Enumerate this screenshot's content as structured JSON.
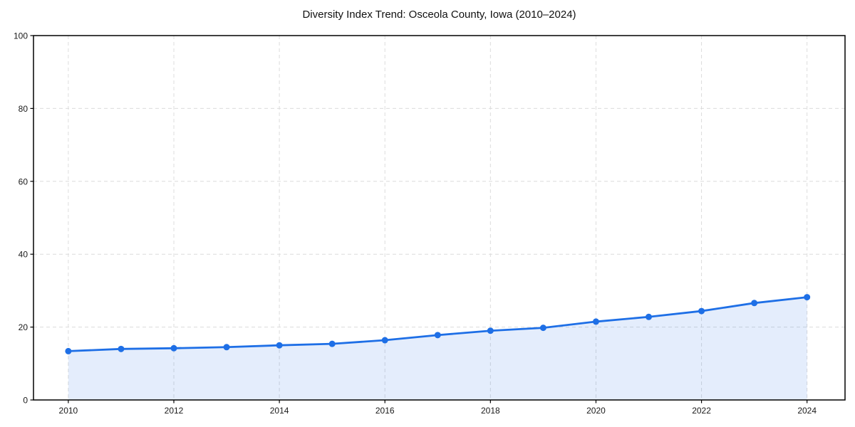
{
  "chart_data": {
    "type": "area",
    "title": "Diversity Index Trend: Osceola County, Iowa (2010–2024)",
    "series_name": "Diversity Index",
    "x": [
      2010,
      2011,
      2012,
      2013,
      2014,
      2015,
      2016,
      2017,
      2018,
      2019,
      2020,
      2021,
      2022,
      2023,
      2024
    ],
    "values": [
      13.4,
      14.0,
      14.2,
      14.5,
      15.0,
      15.4,
      16.4,
      17.8,
      19.0,
      19.8,
      21.5,
      22.8,
      24.4,
      26.6,
      28.2
    ],
    "xlabel": "",
    "ylabel": "",
    "xlim": [
      2009.34,
      2024.72
    ],
    "ylim": [
      0,
      100
    ],
    "x_ticks": [
      2010,
      2012,
      2014,
      2016,
      2018,
      2020,
      2022,
      2024
    ],
    "y_ticks": [
      0,
      20,
      40,
      60,
      80,
      100
    ],
    "grid": true,
    "legend_position": "none",
    "line_color": "#1e6fe6",
    "fill_color": "#1e6fe6",
    "fill_opacity": 0.12,
    "grid_color": "#dcdcdc",
    "axis_color": "#000000",
    "tick_label_color": "#1a1a1a",
    "background": "#ffffff"
  }
}
